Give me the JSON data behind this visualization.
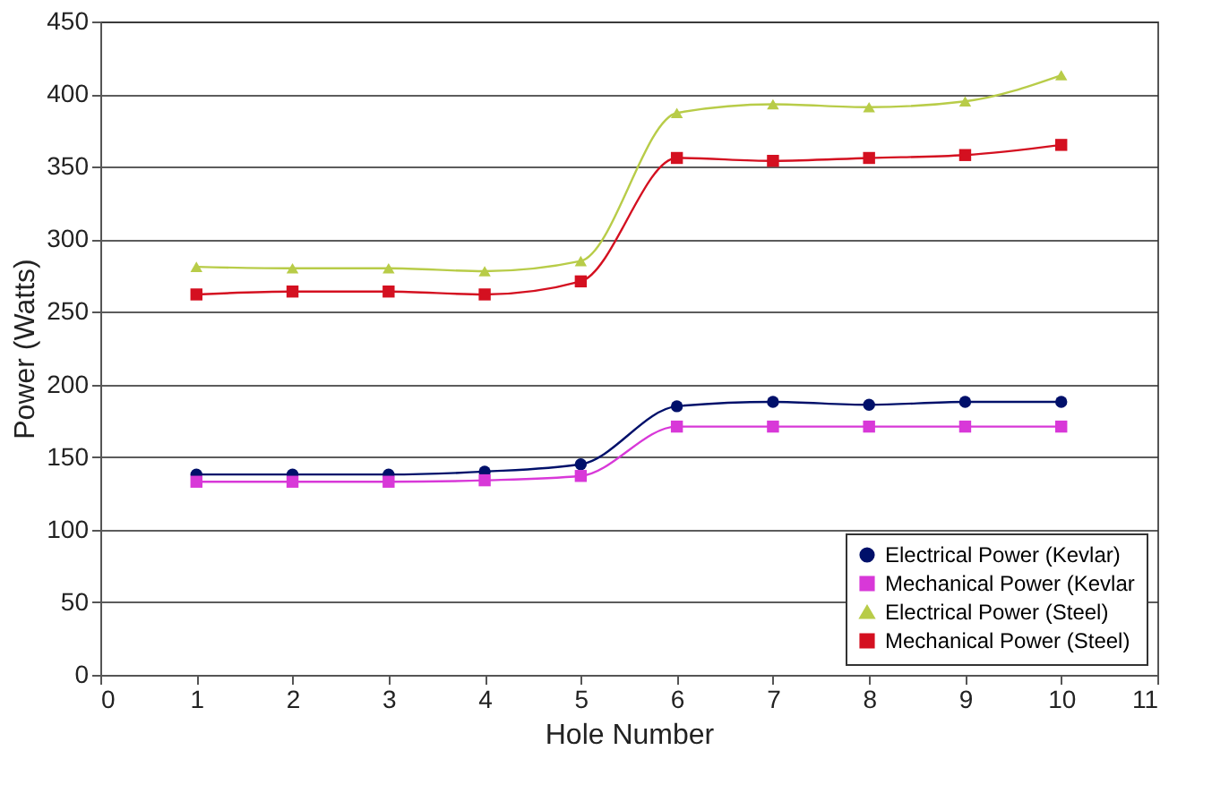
{
  "chart_data": {
    "type": "line",
    "xlabel": "Hole Number",
    "ylabel": "Power (Watts)",
    "x": [
      1,
      2,
      3,
      4,
      5,
      6,
      7,
      8,
      9,
      10
    ],
    "series": [
      {
        "name": "Electrical Power (Kevlar)",
        "color": "#00106a",
        "marker": "circle",
        "values": [
          138,
          138,
          138,
          140,
          145,
          185,
          188,
          186,
          188,
          188
        ]
      },
      {
        "name": "Mechanical Power (Kevlar",
        "color": "#d838d8",
        "marker": "square",
        "values": [
          133,
          133,
          133,
          134,
          137,
          171,
          171,
          171,
          171,
          171
        ]
      },
      {
        "name": "Electrical Power (Steel)",
        "color": "#b8cc48",
        "marker": "triangle",
        "values": [
          281,
          280,
          280,
          278,
          285,
          387,
          393,
          391,
          395,
          413
        ]
      },
      {
        "name": "Mechanical Power (Steel)",
        "color": "#d41020",
        "marker": "square",
        "values": [
          262,
          264,
          264,
          262,
          271,
          356,
          354,
          356,
          358,
          365
        ]
      }
    ],
    "xlim": [
      0,
      11
    ],
    "xticks": [
      0,
      1,
      2,
      3,
      4,
      5,
      6,
      7,
      8,
      9,
      10,
      11
    ],
    "ylim": [
      0,
      450
    ],
    "yticks": [
      0,
      50,
      100,
      150,
      200,
      250,
      300,
      350,
      400,
      450
    ],
    "grid": "y",
    "legend": "bottom right",
    "line_style": "solid"
  }
}
